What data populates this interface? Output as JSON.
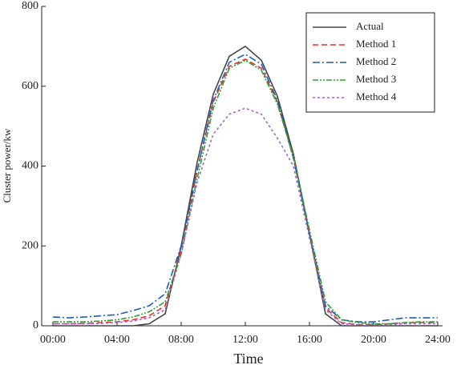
{
  "chart_data": {
    "type": "line",
    "x_label": "Time",
    "y_label": "Cluster power/kw",
    "x": [
      0,
      1,
      2,
      3,
      4,
      5,
      6,
      7,
      8,
      9,
      10,
      11,
      12,
      13,
      14,
      15,
      16,
      17,
      18,
      19,
      20,
      21,
      22,
      23,
      24
    ],
    "xlim": [
      -0.7,
      24.3
    ],
    "xticks": [
      {
        "value": 0,
        "label": "00:00"
      },
      {
        "value": 4,
        "label": "04:00"
      },
      {
        "value": 8,
        "label": "08:00"
      },
      {
        "value": 12,
        "label": "12:00"
      },
      {
        "value": 16,
        "label": "16:00"
      },
      {
        "value": 20,
        "label": "20:00"
      },
      {
        "value": 24,
        "label": "24:00"
      }
    ],
    "ylim": [
      0,
      800
    ],
    "yticks": [
      0,
      200,
      400,
      600,
      800
    ],
    "legend": "top-right",
    "series": [
      {
        "name": "Actual",
        "color": "#444444",
        "dash": "none",
        "values": [
          0,
          0,
          0,
          0,
          0,
          0,
          5,
          30,
          200,
          410,
          580,
          675,
          700,
          665,
          575,
          430,
          230,
          30,
          0,
          0,
          0,
          0,
          0,
          0,
          0
        ]
      },
      {
        "name": "Method 1",
        "color": "#e8302a",
        "dash": "7,4",
        "values": [
          5,
          5,
          6,
          8,
          10,
          15,
          25,
          50,
          190,
          390,
          560,
          650,
          668,
          645,
          560,
          420,
          230,
          45,
          8,
          3,
          3,
          5,
          8,
          8,
          8
        ]
      },
      {
        "name": "Method 2",
        "color": "#1f5fb4",
        "dash": "9,3,2,3",
        "values": [
          22,
          20,
          22,
          25,
          28,
          38,
          50,
          80,
          200,
          390,
          565,
          660,
          680,
          655,
          565,
          420,
          230,
          50,
          15,
          10,
          10,
          15,
          20,
          20,
          20
        ]
      },
      {
        "name": "Method 3",
        "color": "#2ca02c",
        "dash": "7,2,2,2,2,2",
        "values": [
          10,
          10,
          10,
          12,
          15,
          22,
          35,
          60,
          180,
          370,
          545,
          645,
          665,
          640,
          555,
          425,
          240,
          60,
          15,
          8,
          5,
          5,
          8,
          10,
          10
        ]
      },
      {
        "name": "Method 4",
        "color": "#9966cc",
        "dash": "3,3",
        "values": [
          5,
          5,
          5,
          6,
          8,
          12,
          20,
          40,
          180,
          360,
          480,
          530,
          545,
          530,
          470,
          400,
          220,
          40,
          5,
          3,
          3,
          3,
          5,
          5,
          5
        ]
      }
    ]
  }
}
